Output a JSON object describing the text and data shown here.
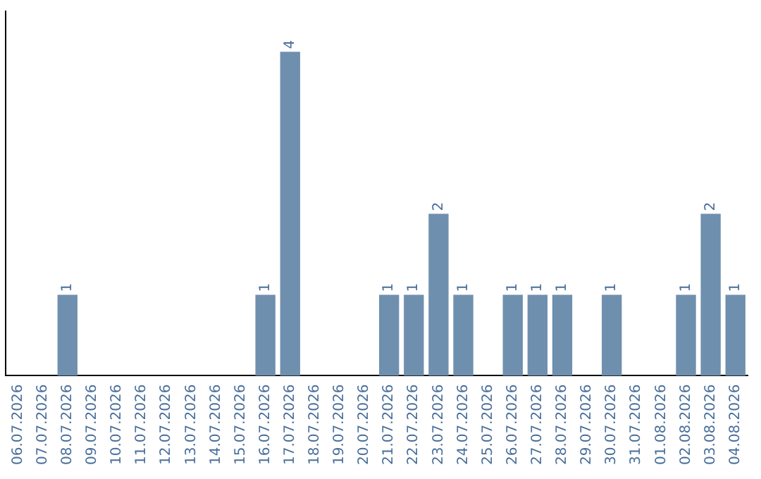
{
  "chart_data": {
    "type": "bar",
    "categories": [
      "06.07.2026",
      "07.07.2026",
      "08.07.2026",
      "09.07.2026",
      "10.07.2026",
      "11.07.2026",
      "12.07.2026",
      "13.07.2026",
      "14.07.2026",
      "15.07.2026",
      "16.07.2026",
      "17.07.2026",
      "18.07.2026",
      "19.07.2026",
      "20.07.2026",
      "21.07.2026",
      "22.07.2026",
      "23.07.2026",
      "24.07.2026",
      "25.07.2026",
      "26.07.2026",
      "27.07.2026",
      "28.07.2026",
      "29.07.2026",
      "30.07.2026",
      "31.07.2026",
      "01.08.2026",
      "02.08.2026",
      "03.08.2026",
      "04.08.2026"
    ],
    "values": [
      0,
      0,
      1,
      0,
      0,
      0,
      0,
      0,
      0,
      0,
      1,
      4,
      0,
      0,
      0,
      1,
      1,
      2,
      1,
      0,
      1,
      1,
      1,
      0,
      1,
      0,
      0,
      1,
      2,
      1
    ],
    "value_labels": [
      null,
      null,
      "1",
      null,
      null,
      null,
      null,
      null,
      null,
      null,
      "1",
      "4",
      null,
      null,
      null,
      "1",
      "1",
      "2",
      "1",
      null,
      "1",
      "1",
      "1",
      null,
      "1",
      null,
      null,
      "1",
      "2",
      "1"
    ],
    "color": "#6f8fae",
    "grid": false,
    "legend": false
  }
}
